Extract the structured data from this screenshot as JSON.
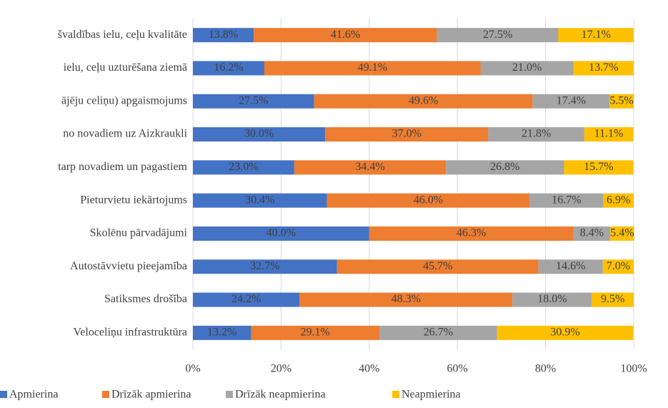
{
  "chart_data": {
    "type": "stacked-barh",
    "categories": [
      "švaldības ielu, ceļu kvalitāte",
      "ielu, ceļu uzturēšana ziemā",
      "ājēju celiņu) apgaismojums",
      "no novadiem uz Aizkraukli",
      "tarp novadiem un pagastiem",
      "Pieturvietu iekārtojums",
      "Skolēnu pārvadājumi",
      "Autostāvvietu pieejamība",
      "Satiksmes drošība",
      "Veloceliņu infrastruktūra"
    ],
    "series": [
      {
        "name": "Apmierina",
        "color": "#4472c4",
        "values": [
          13.8,
          16.2,
          27.5,
          30.0,
          23.0,
          30.4,
          40.0,
          32.7,
          24.2,
          13.2
        ],
        "value_labels": [
          "13.8%",
          "16.2%",
          "27.5%",
          "30.0%",
          "23.0%",
          "30.4%",
          "40.0%",
          "32.7%",
          "24.2%",
          "13.2%"
        ]
      },
      {
        "name": "Drīzāk apmierina",
        "color": "#ed7d31",
        "values": [
          41.6,
          49.1,
          49.6,
          37.0,
          34.4,
          46.0,
          46.3,
          45.7,
          48.3,
          29.1
        ],
        "value_labels": [
          "41.6%",
          "49.1%",
          "49.6%",
          "37.0%",
          "34.4%",
          "46.0%",
          "46.3%",
          "45.7%",
          "48.3%",
          "29.1%"
        ]
      },
      {
        "name": "Drīzāk neapmierina",
        "color": "#a5a5a5",
        "values": [
          27.5,
          21.0,
          17.4,
          21.8,
          26.8,
          16.7,
          8.4,
          14.6,
          18.0,
          26.7
        ],
        "value_labels": [
          "27.5%",
          "21.0%",
          "17.4%",
          "21.8%",
          "26.8%",
          "16.7%",
          "8.4%",
          "14.6%",
          "18.0%",
          "26.7%"
        ]
      },
      {
        "name": "Neapmierina",
        "color": "#ffc000",
        "values": [
          17.1,
          13.7,
          5.5,
          11.1,
          15.7,
          6.9,
          5.4,
          7.0,
          9.5,
          30.9
        ],
        "value_labels": [
          "17.1%",
          "13.7%",
          "5.5%",
          "11.1%",
          "15.7%",
          "6.9%",
          "5.4%",
          "7.0%",
          "9.5%",
          "30.9%"
        ]
      }
    ],
    "xlim": [
      0,
      100
    ],
    "xticks": [
      {
        "value": 0,
        "label": "0%"
      },
      {
        "value": 20,
        "label": "20%"
      },
      {
        "value": 40,
        "label": "40%"
      },
      {
        "value": 60,
        "label": "60%"
      },
      {
        "value": 80,
        "label": "80%"
      },
      {
        "value": 100,
        "label": "100%"
      }
    ],
    "grid": true
  }
}
